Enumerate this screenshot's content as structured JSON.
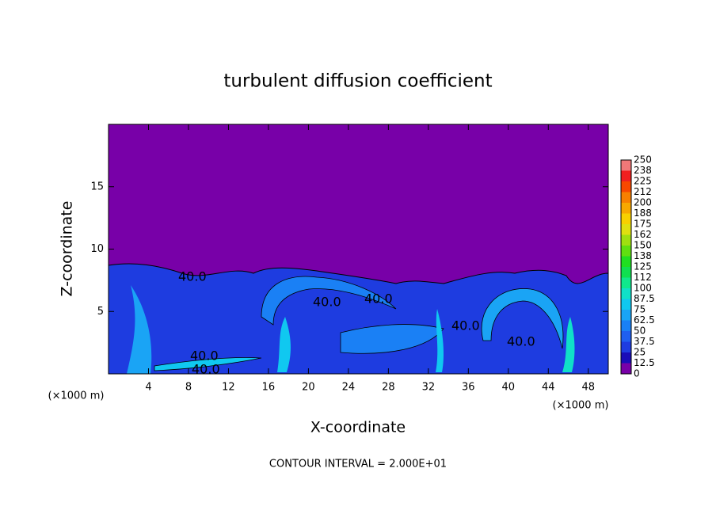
{
  "chart_data": {
    "type": "contour",
    "title": "turbulent diffusion coefficient",
    "xlabel": "X-coordinate",
    "ylabel": "Z-coordinate",
    "xunit": "(×1000 m)",
    "footer": "CONTOUR INTERVAL = 2.000E+01",
    "contour_label": "40.0",
    "xlim": [
      0,
      50
    ],
    "ylim": [
      0,
      20
    ],
    "xticks": [
      4,
      8,
      12,
      16,
      20,
      24,
      28,
      32,
      36,
      40,
      44,
      48
    ],
    "yticks": [
      5,
      10,
      15
    ],
    "colorbar": {
      "levels": [
        0,
        12.5,
        25,
        37.5,
        50,
        62.5,
        75,
        87.5,
        100,
        {
          "value": 112.5,
          "label": "112"
        },
        125,
        {
          "value": 137.5,
          "label": "138"
        },
        150,
        {
          "value": 162.5,
          "label": "162"
        },
        175,
        {
          "value": 187.5,
          "label": "188"
        },
        200,
        {
          "value": 212.5,
          "label": "212"
        },
        225,
        {
          "value": 237.5,
          "label": "238"
        },
        250
      ],
      "colors": [
        "#7800a8",
        "#1a0cb8",
        "#1e3ce0",
        "#1f5ff0",
        "#1a80f5",
        "#1aa4f5",
        "#10c8f0",
        "#10e0c8",
        "#10e88c",
        "#10e050",
        "#20e020",
        "#60e010",
        "#a0e010",
        "#e0e010",
        "#f8d000",
        "#f8a800",
        "#f88000",
        "#f84800",
        "#f02020",
        "#f07878"
      ]
    }
  }
}
